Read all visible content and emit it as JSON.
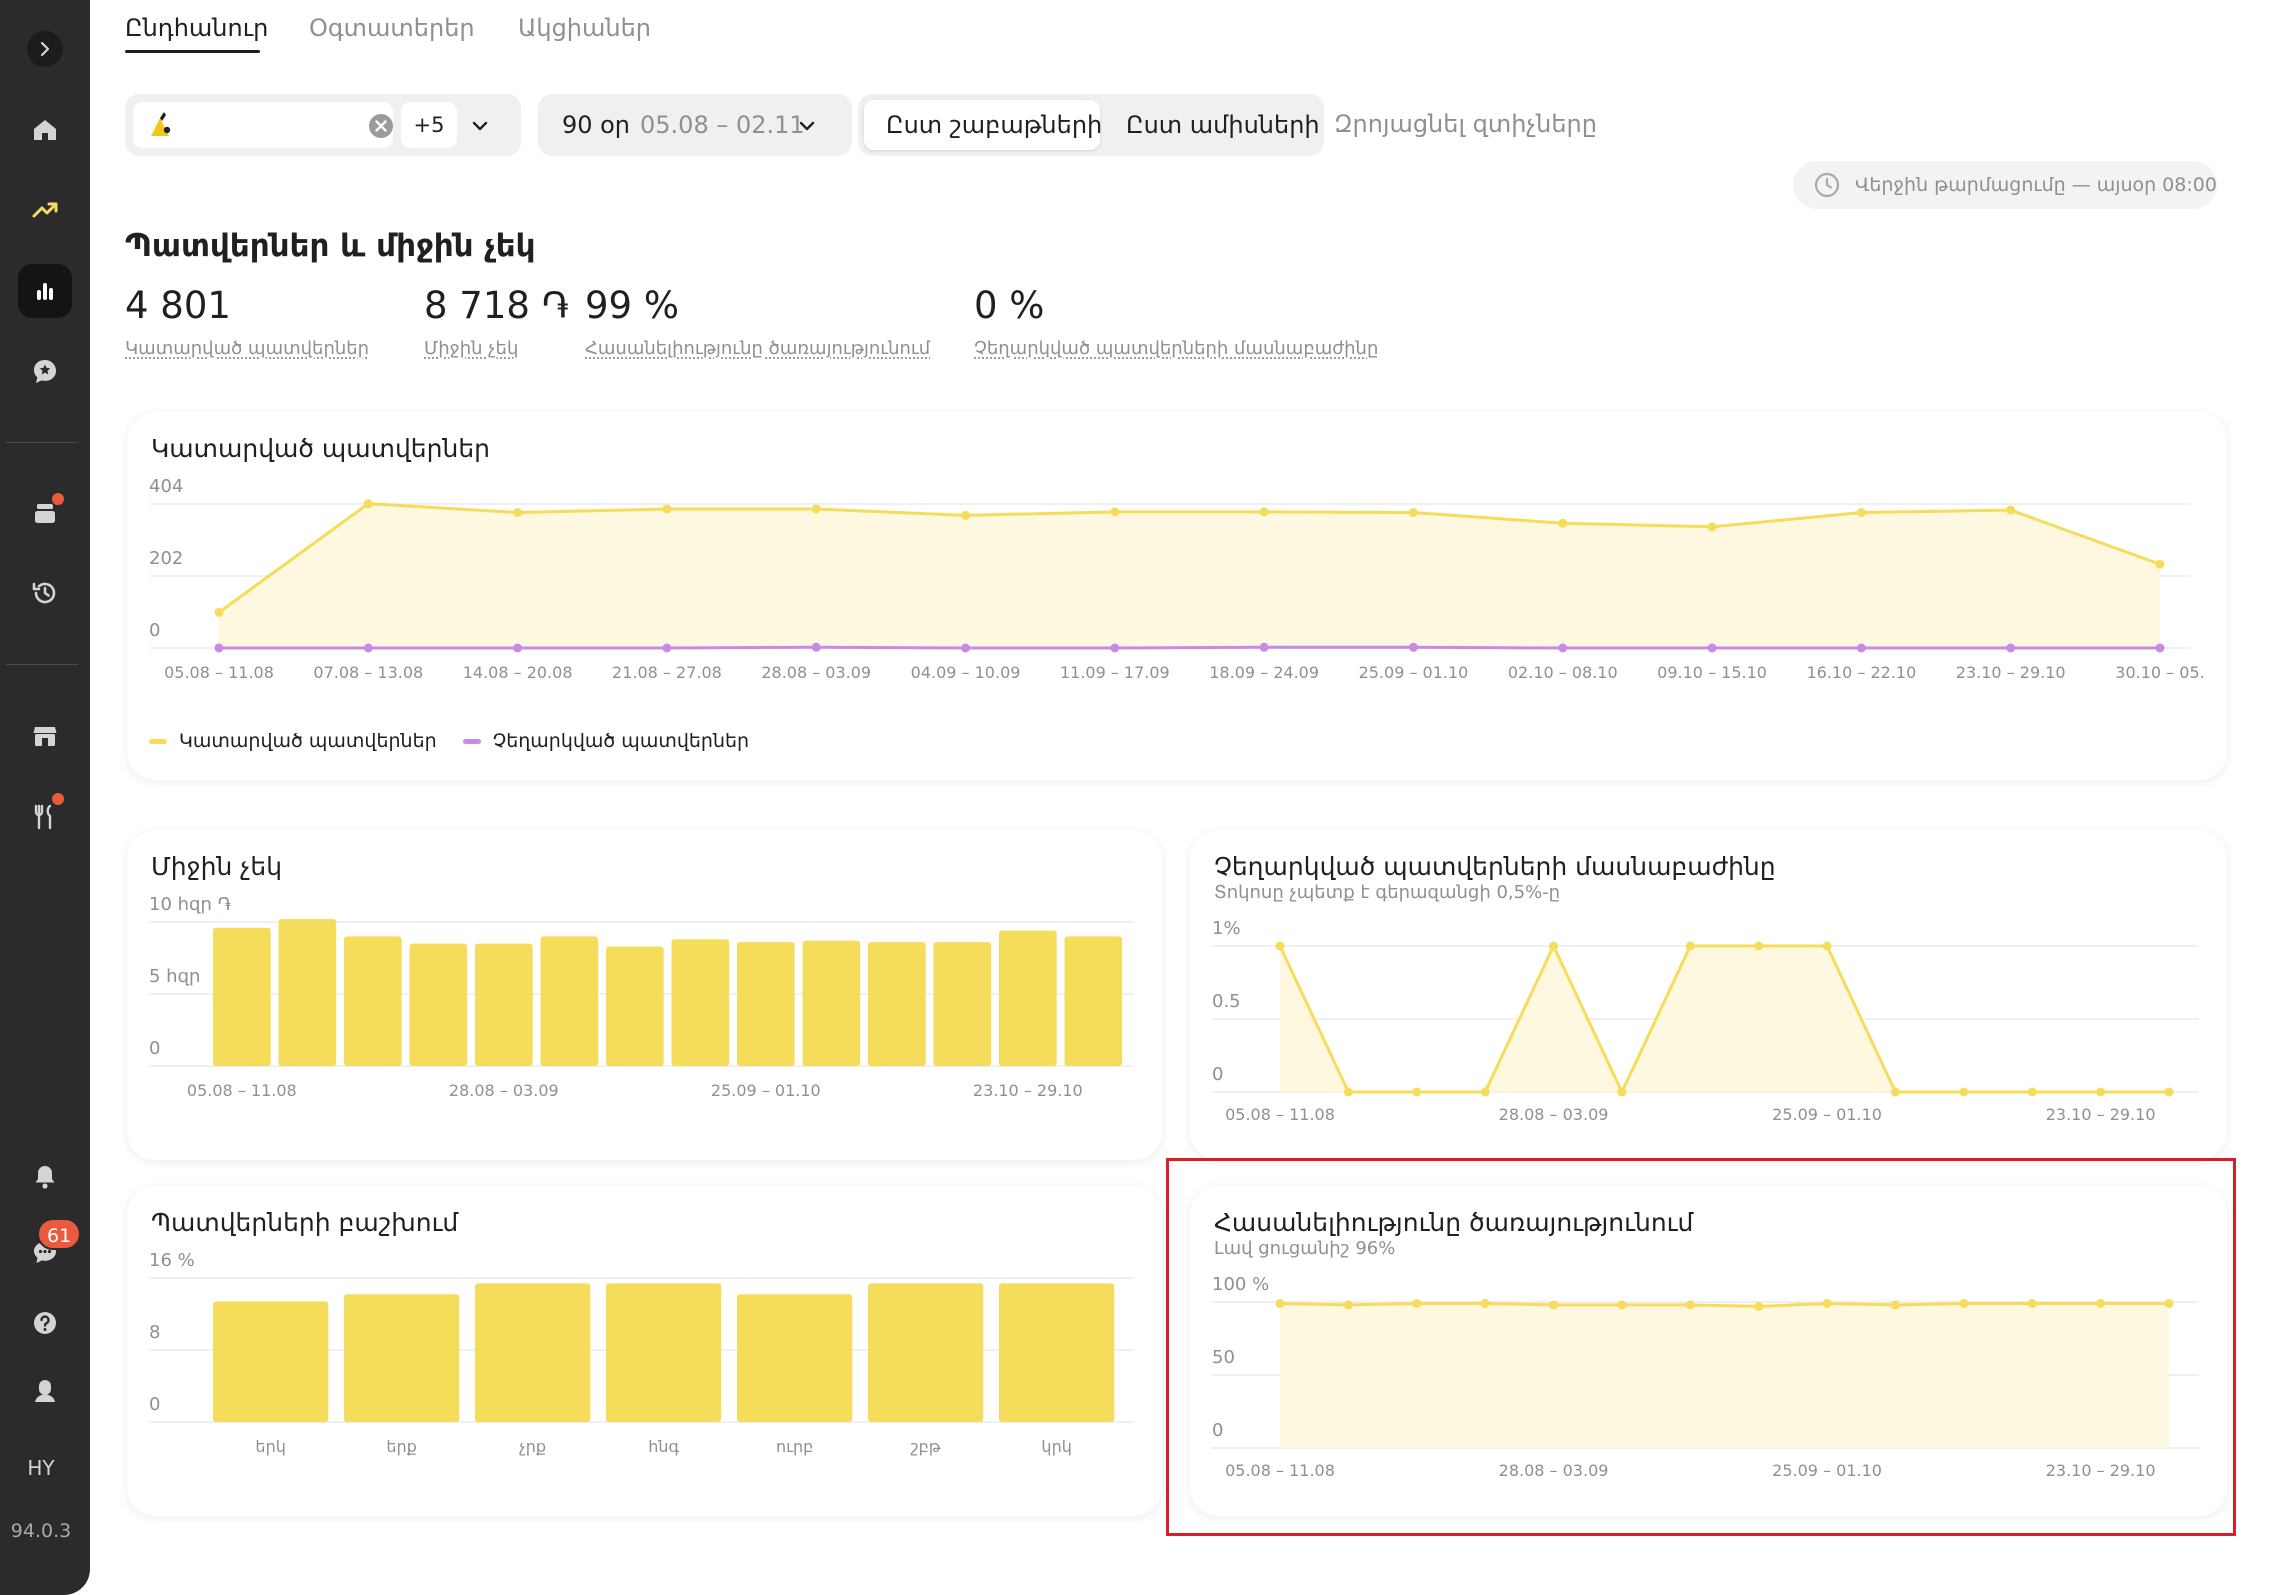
{
  "sidebar": {
    "lang": "HY",
    "version": "94.0.3",
    "unread_count": "61",
    "icons": [
      "chevron-right-icon",
      "home-icon",
      "trend-icon",
      "bar-chart-icon",
      "review-icon",
      "orders-icon",
      "history-icon",
      "store-icon",
      "menu-icon",
      "bell-icon",
      "chat-icon",
      "help-icon",
      "user-icon"
    ]
  },
  "tabs": [
    "Ընդհանուր",
    "Օգտատերեր",
    "Ակցիաներ"
  ],
  "filters": {
    "more_count": "+5",
    "period_days": "90 օր",
    "period_range": "05.08 – 02.11",
    "group_week": "Ըստ շաբաթների",
    "group_month": "Ըստ ամիսների",
    "reset": "Զրոյացնել զտիչները",
    "updated": "Վերջին թարմացումը — այսօր 08:00"
  },
  "summary": {
    "title": "Պատվերներ և միջին չեկ",
    "kpis": [
      {
        "value": "4 801",
        "label": "Կատարված պատվերներ"
      },
      {
        "value": "8 718 ֏",
        "label": "Միջին չեկ"
      },
      {
        "value": "99 %",
        "label": "Հասանելիությունը ծառայությունում"
      },
      {
        "value": "0 %",
        "label": "Չեղարկված պատվերների մասնաբաժինը"
      }
    ]
  },
  "colors": {
    "yellow": "#f5dc5a",
    "purple": "#c98ae6",
    "accent": "#21201f",
    "badge": "#ea5a3c",
    "highlight": "#d81e28"
  },
  "chart_data": [
    {
      "type": "line",
      "title": "Կատարված պատվերներ",
      "x": [
        "05.08 – 11.08",
        "07.08 – 13.08",
        "14.08 – 20.08",
        "21.08 – 27.08",
        "28.08 – 03.09",
        "04.09 – 10.09",
        "11.09 – 17.09",
        "18.09 – 24.09",
        "25.09 – 01.10",
        "02.10 – 08.10",
        "09.10 – 15.10",
        "16.10 – 22.10",
        "23.10 – 29.10",
        "30.10 – 05."
      ],
      "yticks": [
        "404",
        "202",
        "0"
      ],
      "ylim": [
        0,
        404
      ],
      "series": [
        {
          "name": "Կատարված պատվերներ",
          "color": "#f5dc5a",
          "values": [
            100,
            405,
            380,
            390,
            390,
            372,
            382,
            382,
            380,
            350,
            340,
            380,
            387,
            235
          ]
        },
        {
          "name": "Չեղարկված պատվերներ",
          "color": "#c98ae6",
          "values": [
            0,
            0,
            0,
            0,
            2,
            0,
            0,
            2,
            2,
            0,
            0,
            0,
            0,
            0
          ]
        }
      ],
      "grid": true,
      "legend": "bottom-left"
    },
    {
      "type": "bar",
      "title": "Միջին չեկ",
      "categories": [
        "05.08 – 11.08",
        "",
        "",
        "",
        "28.08 – 03.09",
        "",
        "",
        "",
        "25.09 – 01.10",
        "",
        "",
        "",
        "23.10 – 29.10",
        ""
      ],
      "values": [
        9600,
        10200,
        9000,
        8500,
        8500,
        9000,
        8300,
        8800,
        8600,
        8700,
        8600,
        8600,
        9400,
        9000
      ],
      "yticks": [
        "10 հզր ֏",
        "5 հզր",
        "0"
      ],
      "ylim": [
        0,
        10000
      ]
    },
    {
      "type": "line",
      "title": "Չեղարկված պատվերների մասնաբաժինը",
      "subtitle": "Տոկոսը չպետք է գերազանցի 0,5%-ը",
      "x": [
        "05.08 – 11.08",
        "",
        "",
        "",
        "28.08 – 03.09",
        "",
        "",
        "",
        "25.09 – 01.10",
        "",
        "",
        "",
        "23.10 – 29.10",
        ""
      ],
      "yticks": [
        "1%",
        "0.5",
        "0"
      ],
      "ylim": [
        0,
        1
      ],
      "series": [
        {
          "color": "#f5dc5a",
          "values": [
            1,
            0,
            0,
            0,
            1,
            0,
            1,
            1,
            1,
            0,
            0,
            0,
            0,
            0
          ]
        }
      ]
    },
    {
      "type": "bar",
      "title": "Պատվերների բաշխում",
      "categories": [
        "երկ",
        "երք",
        "չրք",
        "հնգ",
        "ուրբ",
        "շբթ",
        "կրկ"
      ],
      "values": [
        13.4,
        14.2,
        15.4,
        15.4,
        14.2,
        15.4,
        15.4
      ],
      "yticks": [
        "16 %",
        "8",
        "0"
      ],
      "ylim": [
        0,
        16
      ]
    },
    {
      "type": "line",
      "title": "Հասանելիությունը ծառայությունում",
      "subtitle": "Լավ ցուցանիշ 96%",
      "x": [
        "05.08 – 11.08",
        "",
        "",
        "",
        "28.08 – 03.09",
        "",
        "",
        "",
        "25.09 – 01.10",
        "",
        "",
        "",
        "23.10 – 29.10",
        ""
      ],
      "yticks": [
        "100 %",
        "50",
        "0"
      ],
      "ylim": [
        0,
        100
      ],
      "series": [
        {
          "color": "#f5dc5a",
          "values": [
            99,
            98,
            99,
            99,
            98,
            98,
            98,
            97,
            99,
            98,
            99,
            99,
            99,
            99
          ]
        }
      ]
    }
  ]
}
